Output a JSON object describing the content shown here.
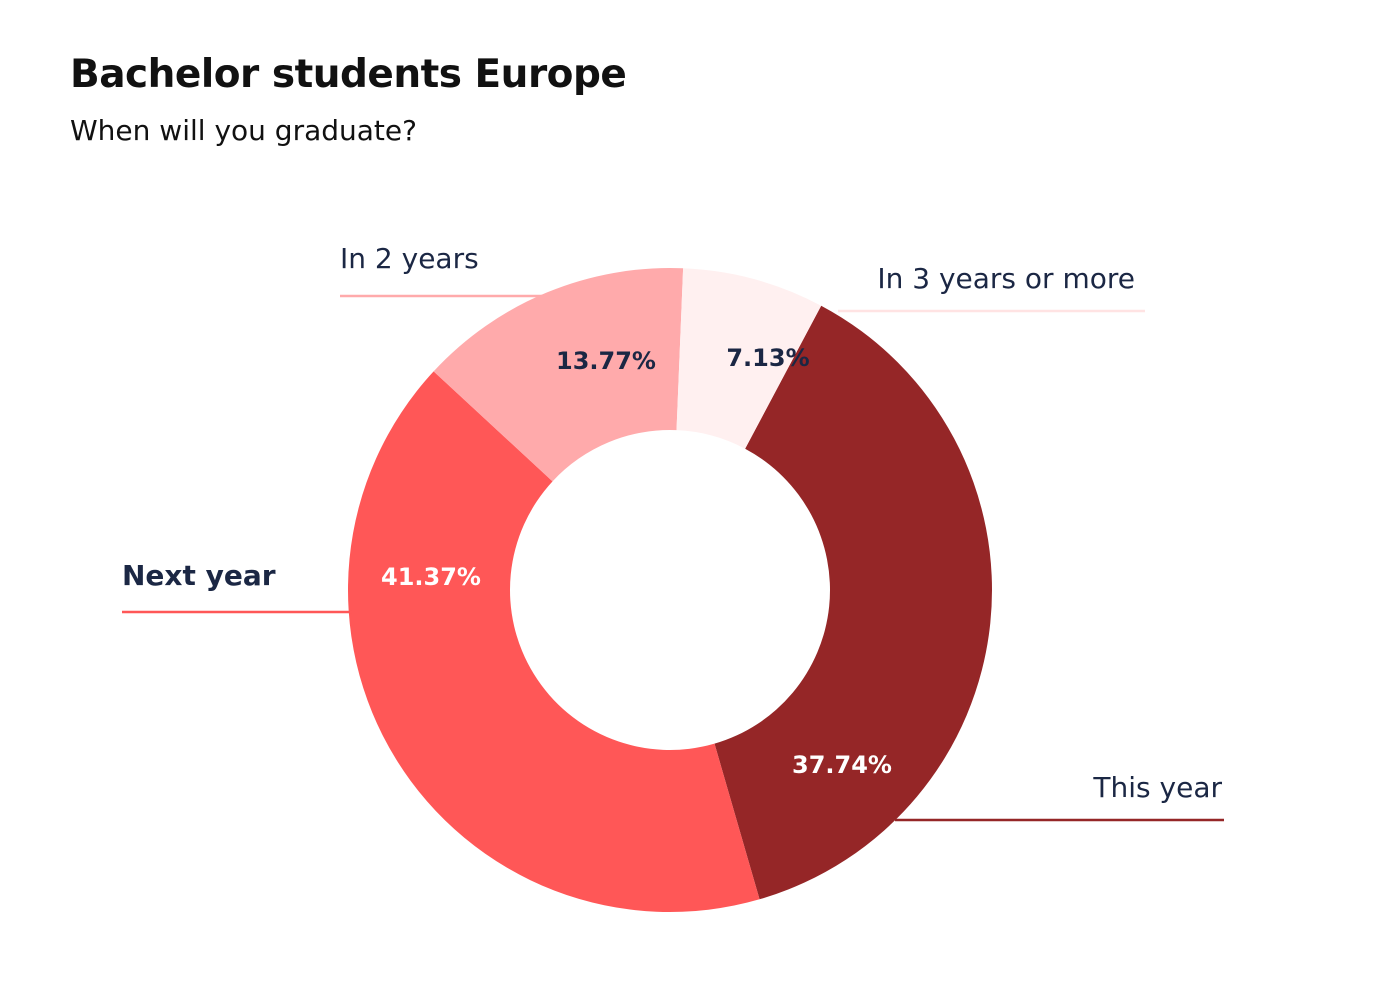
{
  "chart_data": {
    "type": "pie",
    "variant": "donut",
    "title": "Bachelor students Europe",
    "subtitle": "When will you graduate?",
    "slices": [
      {
        "label": "This year",
        "value": 37.74,
        "display": "37.74%",
        "color": "#952627",
        "text_color": "#ffffff"
      },
      {
        "label": "Next year",
        "value": 41.37,
        "display": "41.37%",
        "color": "#ff5757",
        "text_color": "#ffffff"
      },
      {
        "label": "In 2 years",
        "value": 13.77,
        "display": "13.77%",
        "color": "#ffaaab",
        "text_color": "#1b2744"
      },
      {
        "label": "In 3 years or more",
        "value": 7.13,
        "display": "7.13%",
        "color": "#fff0f0",
        "text_color": "#1b2744"
      }
    ],
    "legend": "none"
  }
}
